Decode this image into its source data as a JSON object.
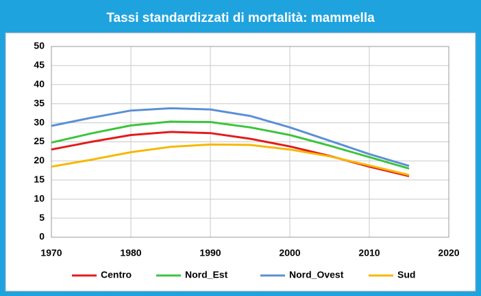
{
  "chart_data": {
    "type": "line",
    "title": "Tassi standardizzati di mortalità: mammella",
    "x": [
      1970,
      1975,
      1980,
      1985,
      1990,
      1995,
      2000,
      2005,
      2010,
      2015
    ],
    "series": [
      {
        "name": "Centro",
        "color": "#e31a1c",
        "values": [
          23,
          25,
          26.8,
          27.6,
          27.3,
          25.8,
          23.8,
          21.3,
          18.5,
          16
        ]
      },
      {
        "name": "Nord_Est",
        "color": "#3cc43c",
        "values": [
          24.8,
          27.2,
          29.3,
          30.3,
          30.2,
          28.8,
          26.8,
          24,
          21,
          18
        ]
      },
      {
        "name": "Nord_Ovest",
        "color": "#5b8fd6",
        "values": [
          29.2,
          31.3,
          33.2,
          33.8,
          33.5,
          31.8,
          28.8,
          25.3,
          21.8,
          18.7
        ]
      },
      {
        "name": "Sud",
        "color": "#f5b800",
        "values": [
          18.5,
          20.3,
          22.3,
          23.7,
          24.3,
          24.2,
          23,
          21.2,
          18.8,
          16.3
        ]
      }
    ],
    "xlim": [
      1970,
      2020
    ],
    "xticks": [
      1970,
      1980,
      1990,
      2000,
      2010,
      2020
    ],
    "ylim": [
      0,
      50
    ],
    "yticks": [
      0,
      5,
      10,
      15,
      20,
      25,
      30,
      35,
      40,
      45,
      50
    ],
    "grid": true,
    "legend": "bottom"
  }
}
